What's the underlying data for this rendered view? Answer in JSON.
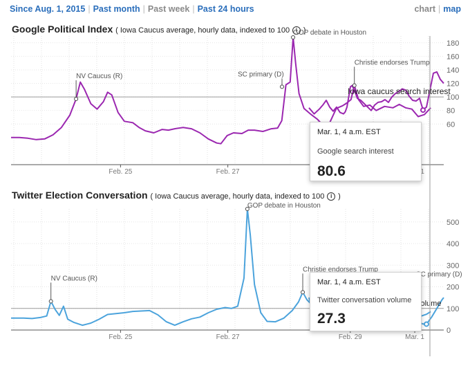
{
  "nav": {
    "ranges": [
      {
        "label": "Since Aug. 1, 2015",
        "active": true
      },
      {
        "label": "Past month",
        "active": true
      },
      {
        "label": "Past week",
        "active": false
      },
      {
        "label": "Past 24 hours",
        "active": true
      }
    ],
    "views": [
      "chart",
      "map"
    ]
  },
  "google": {
    "title": "Google Political Index",
    "subtitle": "( Iowa Caucus average, hourly data, indexed to 100",
    "subtitle_end": ")",
    "info_glyph": "i",
    "tooltip": {
      "date": "Mar. 1, 4 a.m. EST",
      "label": "Google search interest",
      "value": "80.6"
    }
  },
  "twitter": {
    "title": "Twitter Election Conversation",
    "subtitle": "( Iowa Caucus average, hourly data, indexed to 100",
    "subtitle_end": ")",
    "info_glyph": "i",
    "tooltip": {
      "date": "Mar. 1, 4 a.m. EST",
      "label": "Twitter conversation volume",
      "value": "27.3"
    }
  },
  "chart_data": [
    {
      "type": "line",
      "title": "Google Political Index",
      "color": "#9b27b0",
      "ylim": [
        0,
        190
      ],
      "yticks": [
        60,
        80,
        100,
        120,
        140,
        160,
        180
      ],
      "baseline": 100,
      "baseline_label": "Iowa caucus search interest",
      "xlim": [
        0,
        100
      ],
      "xticks": [
        {
          "label": "Feb. 25",
          "x": 25.3
        },
        {
          "label": "Feb. 27",
          "x": 50.1
        },
        {
          "label": "Mar. 1",
          "x": 93.3
        }
      ],
      "series": [
        {
          "points": [
            [
              0,
              40
            ],
            [
              2,
              40
            ],
            [
              4,
              39
            ],
            [
              6,
              37
            ],
            [
              8,
              38
            ],
            [
              10,
              44
            ],
            [
              12,
              55
            ],
            [
              14,
              73
            ],
            [
              15.5,
              97
            ],
            [
              16.5,
              122
            ],
            [
              17.5,
              111
            ],
            [
              19,
              90
            ],
            [
              20.5,
              82
            ],
            [
              22,
              93
            ],
            [
              23,
              107
            ],
            [
              24,
              103
            ],
            [
              25.5,
              77
            ],
            [
              27,
              64
            ],
            [
              29,
              62
            ],
            [
              30.5,
              55
            ],
            [
              32,
              50
            ],
            [
              34,
              47
            ],
            [
              36,
              52
            ],
            [
              37.5,
              51
            ],
            [
              39,
              53
            ],
            [
              41,
              55
            ],
            [
              43,
              53
            ],
            [
              45,
              47
            ],
            [
              47,
              38
            ],
            [
              49,
              32
            ],
            [
              50,
              31
            ],
            [
              51.5,
              43
            ],
            [
              53,
              47
            ],
            [
              55,
              46
            ],
            [
              56.5,
              51
            ],
            [
              58,
              51
            ],
            [
              60,
              49
            ],
            [
              62,
              53
            ],
            [
              63.5,
              54
            ],
            [
              64.5,
              65
            ],
            [
              65.5,
              118
            ],
            [
              66.5,
              122
            ],
            [
              67.2,
              188
            ],
            [
              67.8,
              150
            ],
            [
              68.6,
              105
            ],
            [
              69.8,
              83
            ],
            [
              71.5,
              74
            ],
            [
              73,
              67
            ],
            [
              74.5,
              57
            ],
            [
              76,
              63
            ],
            [
              77.5,
              83
            ],
            [
              79,
              87
            ],
            [
              80,
              91
            ],
            [
              81,
              96
            ],
            [
              81.8,
              117
            ],
            [
              82.8,
              96
            ],
            [
              84,
              86
            ],
            [
              85.5,
              88
            ],
            [
              87,
              80
            ],
            [
              89,
              86
            ],
            [
              91,
              84
            ],
            [
              92.5,
              89
            ],
            [
              94,
              84
            ],
            [
              95.5,
              82
            ],
            [
              97,
              71
            ],
            [
              98.5,
              74
            ],
            [
              100,
              84
            ]
          ]
        }
      ],
      "annotations": [
        {
          "label": "NV Caucus (R)",
          "x": 15.5,
          "y": 97
        },
        {
          "label": "GOP debate in Houston",
          "x": 67.2,
          "y": 188
        },
        {
          "label": "Christie endorses Trump",
          "x": 81.8,
          "y": 117
        }
      ],
      "visible_right_segment": {
        "points": [
          [
            0,
            84
          ],
          [
            3,
            75
          ],
          [
            6,
            82
          ],
          [
            8,
            88
          ],
          [
            10,
            95
          ],
          [
            12,
            85
          ],
          [
            14,
            79
          ],
          [
            16,
            85
          ],
          [
            18,
            77
          ],
          [
            20,
            75
          ],
          [
            21,
            78
          ],
          [
            22,
            85
          ],
          [
            24,
            115
          ],
          [
            25,
            117
          ],
          [
            27,
            105
          ],
          [
            28,
            98
          ],
          [
            30,
            95
          ],
          [
            32,
            90
          ],
          [
            34,
            85
          ],
          [
            36,
            80
          ],
          [
            38,
            88
          ],
          [
            40,
            92
          ],
          [
            42,
            93
          ],
          [
            44,
            96
          ],
          [
            46,
            92
          ],
          [
            48,
            100
          ],
          [
            50,
            105
          ],
          [
            52,
            108
          ],
          [
            54,
            112
          ],
          [
            56,
            110
          ],
          [
            58,
            101
          ],
          [
            60,
            95
          ],
          [
            62,
            94
          ],
          [
            64,
            98
          ],
          [
            66,
            81
          ],
          [
            68,
            85
          ],
          [
            70,
            110
          ],
          [
            72,
            135
          ],
          [
            74,
            137
          ],
          [
            76,
            126
          ],
          [
            78,
            120
          ]
        ],
        "marker": {
          "x": 66,
          "y": 80.6
        },
        "label_sc": {
          "label": "SC primary (D)",
          "x": 24,
          "y": 115
        }
      }
    },
    {
      "type": "line",
      "title": "Twitter Election Conversation",
      "color": "#4ba3dc",
      "ylim": [
        0,
        560
      ],
      "yticks": [
        0,
        100,
        200,
        300,
        400,
        500
      ],
      "baseline": 100,
      "baseline_label": "volume",
      "xlim": [
        0,
        100
      ],
      "xticks": [
        {
          "label": "Feb. 25",
          "x": 25.3
        },
        {
          "label": "Feb. 27",
          "x": 50.1
        },
        {
          "label": "Feb. 29",
          "x": 78.4
        },
        {
          "label": "Mar. 1",
          "x": 93.3
        }
      ],
      "series": [
        {
          "points": [
            [
              0,
              55
            ],
            [
              3,
              55
            ],
            [
              5,
              53
            ],
            [
              7,
              58
            ],
            [
              8.5,
              65
            ],
            [
              9.5,
              133
            ],
            [
              10.5,
              95
            ],
            [
              11.5,
              68
            ],
            [
              12.5,
              110
            ],
            [
              13.5,
              50
            ],
            [
              15,
              35
            ],
            [
              17,
              22
            ],
            [
              19,
              32
            ],
            [
              21,
              50
            ],
            [
              23,
              72
            ],
            [
              25,
              76
            ],
            [
              27,
              80
            ],
            [
              29,
              86
            ],
            [
              31,
              88
            ],
            [
              33,
              90
            ],
            [
              35,
              70
            ],
            [
              37,
              38
            ],
            [
              39,
              22
            ],
            [
              41,
              38
            ],
            [
              43,
              52
            ],
            [
              45,
              60
            ],
            [
              47,
              80
            ],
            [
              49,
              96
            ],
            [
              51,
              104
            ],
            [
              52.5,
              100
            ],
            [
              54,
              110
            ],
            [
              55.5,
              240
            ],
            [
              56.3,
              560
            ],
            [
              57,
              440
            ],
            [
              58,
              210
            ],
            [
              59.5,
              80
            ],
            [
              61,
              40
            ],
            [
              63,
              38
            ],
            [
              65,
              55
            ],
            [
              67,
              90
            ],
            [
              68.5,
              130
            ],
            [
              69.5,
              175
            ],
            [
              70.5,
              140
            ],
            [
              72,
              110
            ],
            [
              74,
              95
            ],
            [
              76,
              110
            ],
            [
              78,
              106
            ],
            [
              79,
              38
            ],
            [
              80,
              30
            ],
            [
              81.5,
              40
            ],
            [
              83,
              55
            ],
            [
              85,
              72
            ],
            [
              87,
              76
            ],
            [
              89,
              68
            ],
            [
              91,
              55
            ],
            [
              93,
              36
            ],
            [
              95,
              45
            ],
            [
              97,
              60
            ],
            [
              99,
              73
            ],
            [
              100,
              85
            ]
          ]
        }
      ],
      "annotations": [
        {
          "label": "NV Caucus (R)",
          "x": 9.5,
          "y": 133
        },
        {
          "label": "GOP debate in Houston",
          "x": 56.3,
          "y": 560
        },
        {
          "label": "Christie endorses Trump",
          "x": 69.5,
          "y": 175
        },
        {
          "label": "SC primary (D)",
          "x": 96.5,
          "y": 152
        }
      ],
      "right_segment": {
        "points": [
          [
            0,
            150
          ],
          [
            1,
            120
          ],
          [
            2,
            90
          ],
          [
            3,
            80
          ],
          [
            4,
            20
          ],
          [
            6,
            70
          ],
          [
            8,
            50
          ],
          [
            10,
            20
          ],
          [
            12,
            25
          ],
          [
            14,
            18
          ],
          [
            16,
            25
          ],
          [
            20,
            30
          ],
          [
            28,
            45
          ],
          [
            34,
            38
          ],
          [
            40,
            50
          ],
          [
            46,
            45
          ],
          [
            52,
            40
          ],
          [
            58,
            35
          ],
          [
            62,
            40
          ],
          [
            66,
            28
          ],
          [
            68,
            27.3
          ],
          [
            71,
            60
          ],
          [
            74,
            100
          ],
          [
            77,
            140
          ],
          [
            78,
            150
          ]
        ],
        "marker": {
          "x": 68,
          "y": 27.3
        }
      }
    }
  ]
}
